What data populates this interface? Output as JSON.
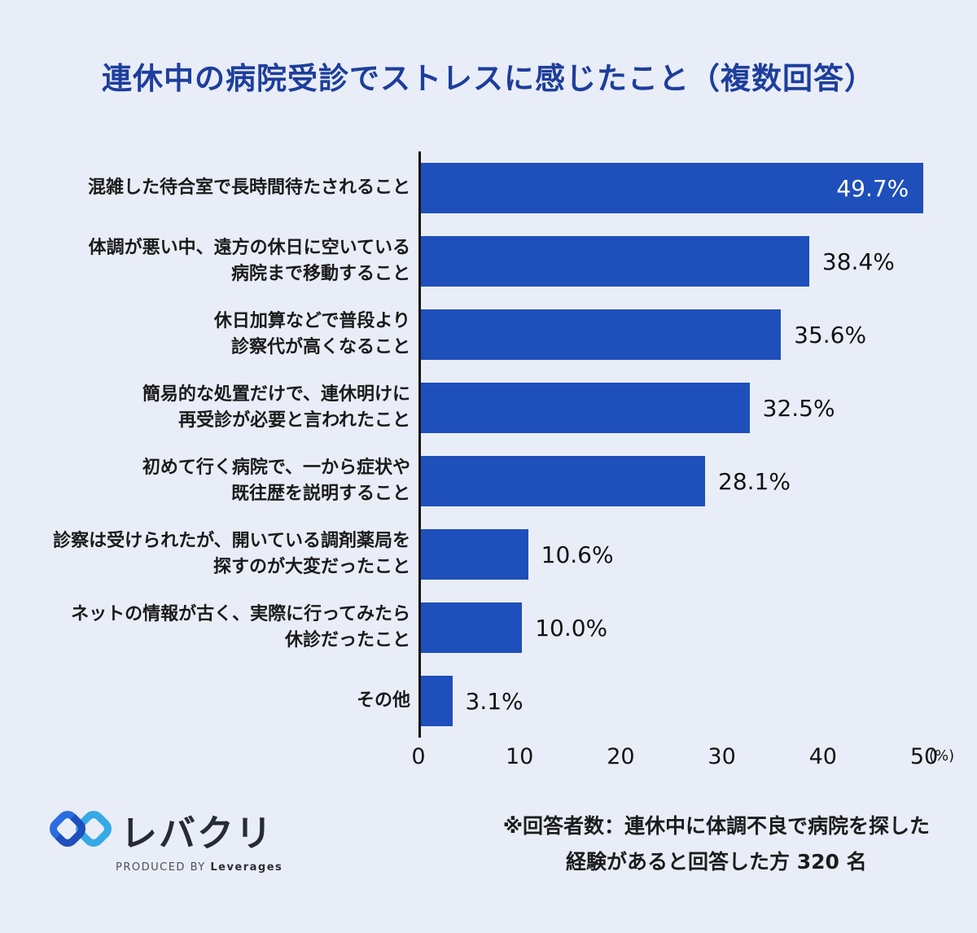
{
  "title": "連休中の病院受診でストレスに感じたこと（複数回答）",
  "chart_data": {
    "type": "bar",
    "orientation": "horizontal",
    "title": "連休中の病院受診でストレスに感じたこと（複数回答）",
    "categories": [
      "混雑した待合室で長時間待たされること",
      "体調が悪い中、遠方の休日に空いている\n病院まで移動すること",
      "休日加算などで普段より\n診察代が高くなること",
      "簡易的な処置だけで、連休明けに\n再受診が必要と言われたこと",
      "初めて行く病院で、一から症状や\n既往歴を説明すること",
      "診察は受けられたが、開いている調剤薬局を\n探すのが大変だったこと",
      "ネットの情報が古く、実際に行ってみたら\n休診だったこと",
      "その他"
    ],
    "values": [
      49.7,
      38.4,
      35.6,
      32.5,
      28.1,
      10.6,
      10.0,
      3.1
    ],
    "value_labels": [
      "49.7%",
      "38.4%",
      "35.6%",
      "32.5%",
      "28.1%",
      "10.6%",
      "10.0%",
      "3.1%"
    ],
    "xlim": [
      0,
      50
    ],
    "x_ticks": [
      0,
      10,
      20,
      30,
      40,
      50
    ],
    "x_unit": "(%)",
    "xlabel": "",
    "ylabel": "",
    "grid": false,
    "legend": null,
    "bar_color": "#1e4fbb"
  },
  "footer": {
    "note": "※回答者数：連休中に体調不良で病院を探した\n経験があると回答した方 320 名",
    "logo_text": "レバクリ",
    "logo_tagline_prefix": "PRODUCED BY",
    "logo_tagline_brand": "Leverages"
  },
  "colors": {
    "background": "#e9edf7",
    "title": "#1d3e9c",
    "bar": "#1e4fbb",
    "axis": "#141414",
    "value_inside": "#ffffff",
    "value_outside": "#121212"
  }
}
